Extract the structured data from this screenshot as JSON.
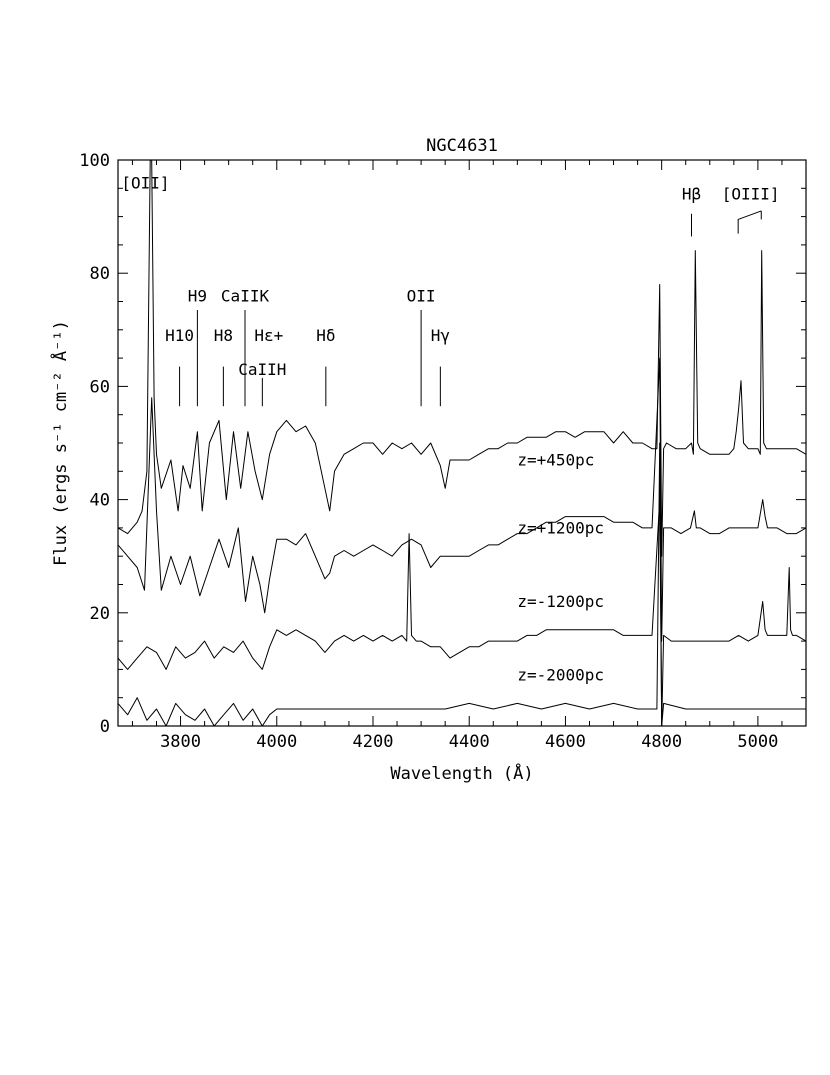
{
  "chart_data": {
    "type": "line",
    "title": "NGC4631",
    "xlabel": "Wavelength (Å)",
    "ylabel": "Flux (ergs s⁻¹ cm⁻² Å⁻¹)",
    "xlim": [
      3670,
      5100
    ],
    "ylim": [
      0,
      100
    ],
    "x_ticks": [
      3800,
      4000,
      4200,
      4400,
      4600,
      4800,
      5000
    ],
    "y_ticks": [
      0,
      20,
      40,
      60,
      80,
      100
    ],
    "series": [
      {
        "name": "z=+450pc",
        "label_at": [
          4500,
          46
        ],
        "x": [
          3670,
          3690,
          3710,
          3720,
          3730,
          3737,
          3740,
          3745,
          3750,
          3760,
          3780,
          3795,
          3805,
          3820,
          3835,
          3845,
          3860,
          3880,
          3895,
          3910,
          3925,
          3940,
          3955,
          3970,
          3985,
          4000,
          4020,
          4040,
          4060,
          4080,
          4100,
          4110,
          4120,
          4140,
          4160,
          4180,
          4200,
          4220,
          4240,
          4260,
          4280,
          4300,
          4320,
          4340,
          4350,
          4360,
          4380,
          4400,
          4420,
          4440,
          4460,
          4480,
          4500,
          4520,
          4540,
          4560,
          4580,
          4600,
          4620,
          4640,
          4660,
          4680,
          4700,
          4720,
          4740,
          4760,
          4780,
          4790,
          4796,
          4800,
          4804,
          4810,
          4830,
          4850,
          4862,
          4866,
          4870,
          4875,
          4880,
          4900,
          4920,
          4940,
          4950,
          4955,
          4960,
          4965,
          4970,
          4980,
          4990,
          5000,
          5005,
          5008,
          5012,
          5018,
          5025,
          5040,
          5060,
          5080,
          5100
        ],
        "y": [
          35,
          34,
          36,
          38,
          45,
          100,
          100,
          58,
          48,
          42,
          47,
          38,
          46,
          42,
          52,
          38,
          50,
          54,
          40,
          52,
          42,
          52,
          45,
          40,
          48,
          52,
          54,
          52,
          53,
          50,
          42,
          38,
          45,
          48,
          49,
          50,
          50,
          48,
          50,
          49,
          50,
          48,
          50,
          46,
          42,
          47,
          47,
          47,
          48,
          49,
          49,
          50,
          50,
          51,
          51,
          51,
          52,
          52,
          51,
          52,
          52,
          52,
          50,
          52,
          50,
          50,
          49,
          49,
          78,
          30,
          49,
          50,
          49,
          49,
          50,
          48,
          84,
          50,
          49,
          48,
          48,
          48,
          49,
          52,
          56,
          61,
          50,
          49,
          49,
          49,
          48,
          84,
          50,
          49,
          49,
          49,
          49,
          49,
          48
        ]
      },
      {
        "name": "z=+1200pc",
        "label_at": [
          4500,
          34
        ],
        "x": [
          3670,
          3690,
          3710,
          3725,
          3740,
          3750,
          3760,
          3780,
          3800,
          3820,
          3840,
          3860,
          3880,
          3900,
          3920,
          3935,
          3950,
          3965,
          3975,
          3985,
          4000,
          4020,
          4040,
          4060,
          4080,
          4100,
          4110,
          4120,
          4140,
          4160,
          4180,
          4200,
          4220,
          4240,
          4260,
          4280,
          4300,
          4310,
          4320,
          4340,
          4360,
          4380,
          4400,
          4420,
          4440,
          4460,
          4480,
          4500,
          4520,
          4540,
          4560,
          4580,
          4600,
          4620,
          4640,
          4660,
          4680,
          4700,
          4720,
          4740,
          4760,
          4780,
          4796,
          4800,
          4804,
          4820,
          4840,
          4860,
          4868,
          4872,
          4880,
          4900,
          4920,
          4940,
          4960,
          4980,
          5000,
          5010,
          5015,
          5020,
          5040,
          5060,
          5080,
          5100
        ],
        "y": [
          32,
          30,
          28,
          24,
          58,
          38,
          24,
          30,
          25,
          30,
          23,
          28,
          33,
          28,
          35,
          22,
          30,
          25,
          20,
          26,
          33,
          33,
          32,
          34,
          30,
          26,
          27,
          30,
          31,
          30,
          31,
          32,
          31,
          30,
          32,
          33,
          32,
          30,
          28,
          30,
          30,
          30,
          30,
          31,
          32,
          32,
          33,
          34,
          34,
          35,
          36,
          36,
          37,
          37,
          37,
          37,
          37,
          36,
          36,
          36,
          35,
          35,
          65,
          15,
          35,
          35,
          34,
          35,
          38,
          35,
          35,
          34,
          34,
          35,
          35,
          35,
          35,
          40,
          37,
          35,
          35,
          34,
          34,
          35
        ]
      },
      {
        "name": "z=-1200pc",
        "label_at": [
          4500,
          21
        ],
        "x": [
          3670,
          3690,
          3710,
          3730,
          3750,
          3770,
          3790,
          3810,
          3830,
          3850,
          3870,
          3890,
          3910,
          3930,
          3950,
          3970,
          3985,
          4000,
          4020,
          4040,
          4060,
          4080,
          4100,
          4110,
          4120,
          4140,
          4160,
          4180,
          4200,
          4220,
          4240,
          4260,
          4270,
          4275,
          4280,
          4290,
          4300,
          4320,
          4340,
          4360,
          4380,
          4400,
          4420,
          4440,
          4460,
          4480,
          4500,
          4520,
          4540,
          4560,
          4580,
          4600,
          4620,
          4640,
          4660,
          4680,
          4700,
          4720,
          4740,
          4760,
          4780,
          4796,
          4800,
          4804,
          4820,
          4840,
          4860,
          4880,
          4900,
          4920,
          4940,
          4960,
          4980,
          5000,
          5010,
          5015,
          5020,
          5040,
          5060,
          5065,
          5068,
          5072,
          5080,
          5100
        ],
        "y": [
          12,
          10,
          12,
          14,
          13,
          10,
          14,
          12,
          13,
          15,
          12,
          14,
          13,
          15,
          12,
          10,
          14,
          17,
          16,
          17,
          16,
          15,
          13,
          14,
          15,
          16,
          15,
          16,
          15,
          16,
          15,
          16,
          15,
          34,
          16,
          15,
          15,
          14,
          14,
          12,
          13,
          14,
          14,
          15,
          15,
          15,
          15,
          16,
          16,
          17,
          17,
          17,
          17,
          17,
          17,
          17,
          17,
          16,
          16,
          16,
          16,
          40,
          0,
          16,
          15,
          15,
          15,
          15,
          15,
          15,
          15,
          16,
          15,
          16,
          22,
          17,
          16,
          16,
          16,
          28,
          17,
          16,
          16,
          15
        ]
      },
      {
        "name": "z=-2000pc",
        "label_at": [
          4500,
          8
        ],
        "x": [
          3670,
          3690,
          3710,
          3730,
          3750,
          3770,
          3790,
          3810,
          3830,
          3850,
          3870,
          3890,
          3910,
          3930,
          3950,
          3970,
          3985,
          4000,
          4050,
          4100,
          4150,
          4200,
          4250,
          4300,
          4350,
          4400,
          4450,
          4500,
          4550,
          4600,
          4650,
          4700,
          4750,
          4790,
          4796,
          4800,
          4804,
          4850,
          4900,
          4950,
          5000,
          5050,
          5100
        ],
        "y": [
          4,
          2,
          5,
          1,
          3,
          0,
          4,
          2,
          1,
          3,
          0,
          2,
          4,
          1,
          3,
          0,
          2,
          3,
          3,
          3,
          3,
          3,
          3,
          3,
          3,
          4,
          3,
          4,
          3,
          4,
          3,
          4,
          3,
          3,
          50,
          0,
          4,
          3,
          3,
          3,
          3,
          3,
          3
        ]
      }
    ],
    "annotations": [
      {
        "text": "[OII]",
        "x": 3727,
        "text_y": 95,
        "line": []
      },
      {
        "text": "H10",
        "x": 3798,
        "text_y": 68,
        "line": [
          63.5,
          56.5
        ]
      },
      {
        "text": "H9",
        "x": 3835,
        "text_y": 75,
        "line": [
          73.5,
          56.5
        ]
      },
      {
        "text": "H8",
        "x": 3889,
        "text_y": 68,
        "line": [
          63.5,
          56.5
        ]
      },
      {
        "text": "CaIIK",
        "x": 3934,
        "text_y": 75,
        "line": [
          73.5,
          56.5
        ]
      },
      {
        "text": "Hε+",
        "x": 3970,
        "text_y": 68,
        "line": [],
        "align": "left"
      },
      {
        "text": "CaIIH",
        "x": 3970,
        "text_y": 62,
        "line": [
          61.5,
          56.5
        ]
      },
      {
        "text": "Hδ",
        "x": 4102,
        "text_y": 68,
        "line": [
          63.5,
          56.5
        ]
      },
      {
        "text": "OII",
        "x": 4300,
        "text_y": 75,
        "line": [
          73.5,
          56.5
        ]
      },
      {
        "text": "Hγ",
        "x": 4340,
        "text_y": 68,
        "line": [
          63.5,
          56.5
        ]
      },
      {
        "text": "Hβ",
        "x": 4862,
        "text_y": 93,
        "line": [
          90.5,
          86.5
        ]
      },
      {
        "text": "[OIII]",
        "x": 4985,
        "text_y": 93,
        "line": [],
        "bracket": [
          4959,
          5007,
          87,
          89.5,
          91
        ]
      }
    ],
    "grid": false,
    "legend": "inline"
  }
}
